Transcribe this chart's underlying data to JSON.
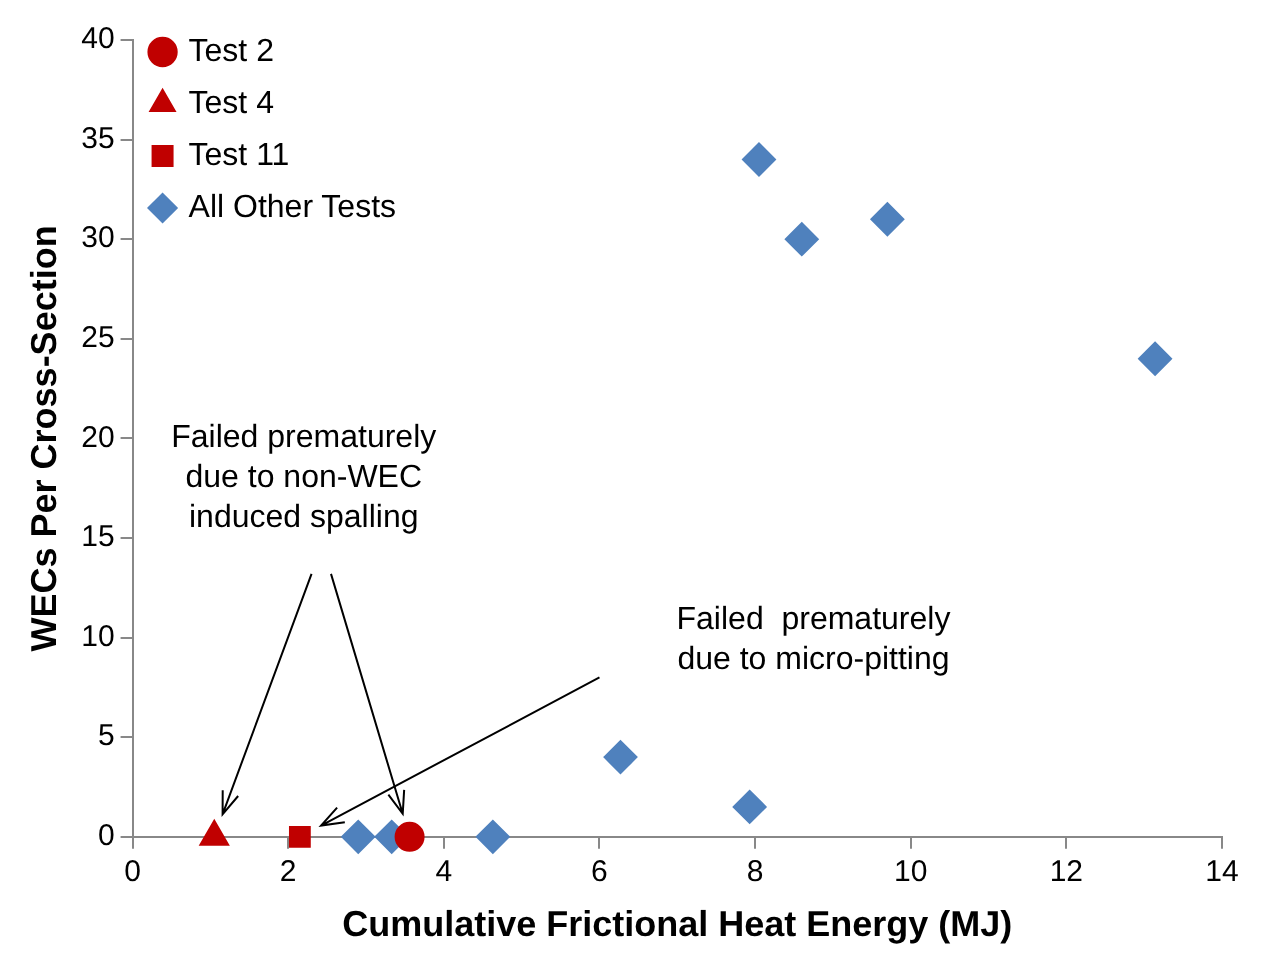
{
  "chart_data": {
    "type": "scatter",
    "xlabel": "Cumulative Frictional Heat Energy (MJ)",
    "ylabel": "WECs Per Cross-Section",
    "xlim": [
      0,
      14
    ],
    "xticks": [
      0,
      2,
      4,
      6,
      8,
      10,
      12,
      14
    ],
    "ylim": [
      0,
      40
    ],
    "yticks": [
      0,
      5,
      10,
      15,
      20,
      25,
      30,
      35,
      40
    ],
    "grid": false,
    "legend": "top left",
    "series": [
      {
        "name": "Test 2",
        "color": "#c00000",
        "marker": "circle",
        "x": [
          3.56
        ],
        "values": [
          0
        ]
      },
      {
        "name": "Test 4",
        "color": "#c00000",
        "marker": "triangle",
        "x": [
          1.05
        ],
        "values": [
          0
        ]
      },
      {
        "name": "Test 11",
        "color": "#c00000",
        "marker": "square",
        "x": [
          2.15
        ],
        "values": [
          0
        ]
      },
      {
        "name": "All Other Tests",
        "color": "#4f81bd",
        "marker": "diamond",
        "x": [
          2.9,
          3.33,
          4.63,
          6.27,
          7.93,
          8.05,
          8.6,
          9.7,
          13.14
        ],
        "values": [
          0,
          0,
          0,
          4,
          1.5,
          34,
          30,
          31,
          24
        ]
      }
    ],
    "annotations": [
      "Failed prematurely\ndue to non-WEC\ninduced spalling",
      "Failed  prematurely\ndue to micro-pitting"
    ]
  }
}
